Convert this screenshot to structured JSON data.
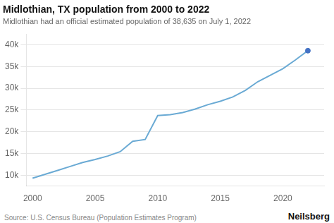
{
  "chart_data": {
    "type": "line",
    "title": "Midlothian, TX population from 2000 to 2022",
    "subtitle": "Midlothian had an official estimated population of 38,635 on July 1, 2022",
    "annotations": [
      "Source: U.S. Census Bureau (Population Estimates Program)",
      "Neilsberg"
    ],
    "x": [
      2000,
      2001,
      2002,
      2003,
      2004,
      2005,
      2006,
      2007,
      2008,
      2009,
      2010,
      2011,
      2012,
      2013,
      2014,
      2015,
      2016,
      2017,
      2018,
      2019,
      2020,
      2021,
      2022
    ],
    "series": [
      {
        "color": "#6aaad4",
        "values": [
          9300,
          10200,
          11100,
          12000,
          12900,
          13600,
          14400,
          15400,
          17800,
          18200,
          23700,
          23900,
          24400,
          25200,
          26200,
          27000,
          28000,
          29500,
          31500,
          33000,
          34500,
          36500,
          38635
        ]
      },
      {
        "type": "scatter",
        "marker": "circle",
        "color": "#4472c4",
        "x": [
          2022
        ],
        "values": [
          38635
        ]
      }
    ],
    "xlim": [
      1999.5,
      2023.3
    ],
    "xticks": [
      2000,
      2005,
      2010,
      2015,
      2020
    ],
    "ylim": [
      7500,
      42500
    ],
    "yticks": [
      {
        "value": 10000,
        "label": "10k"
      },
      {
        "value": 15000,
        "label": "15k"
      },
      {
        "value": 20000,
        "label": "20k"
      },
      {
        "value": 25000,
        "label": "25k"
      },
      {
        "value": 30000,
        "label": "30k"
      },
      {
        "value": 35000,
        "label": "35k"
      },
      {
        "value": 40000,
        "label": "40k"
      }
    ],
    "grid": true
  }
}
